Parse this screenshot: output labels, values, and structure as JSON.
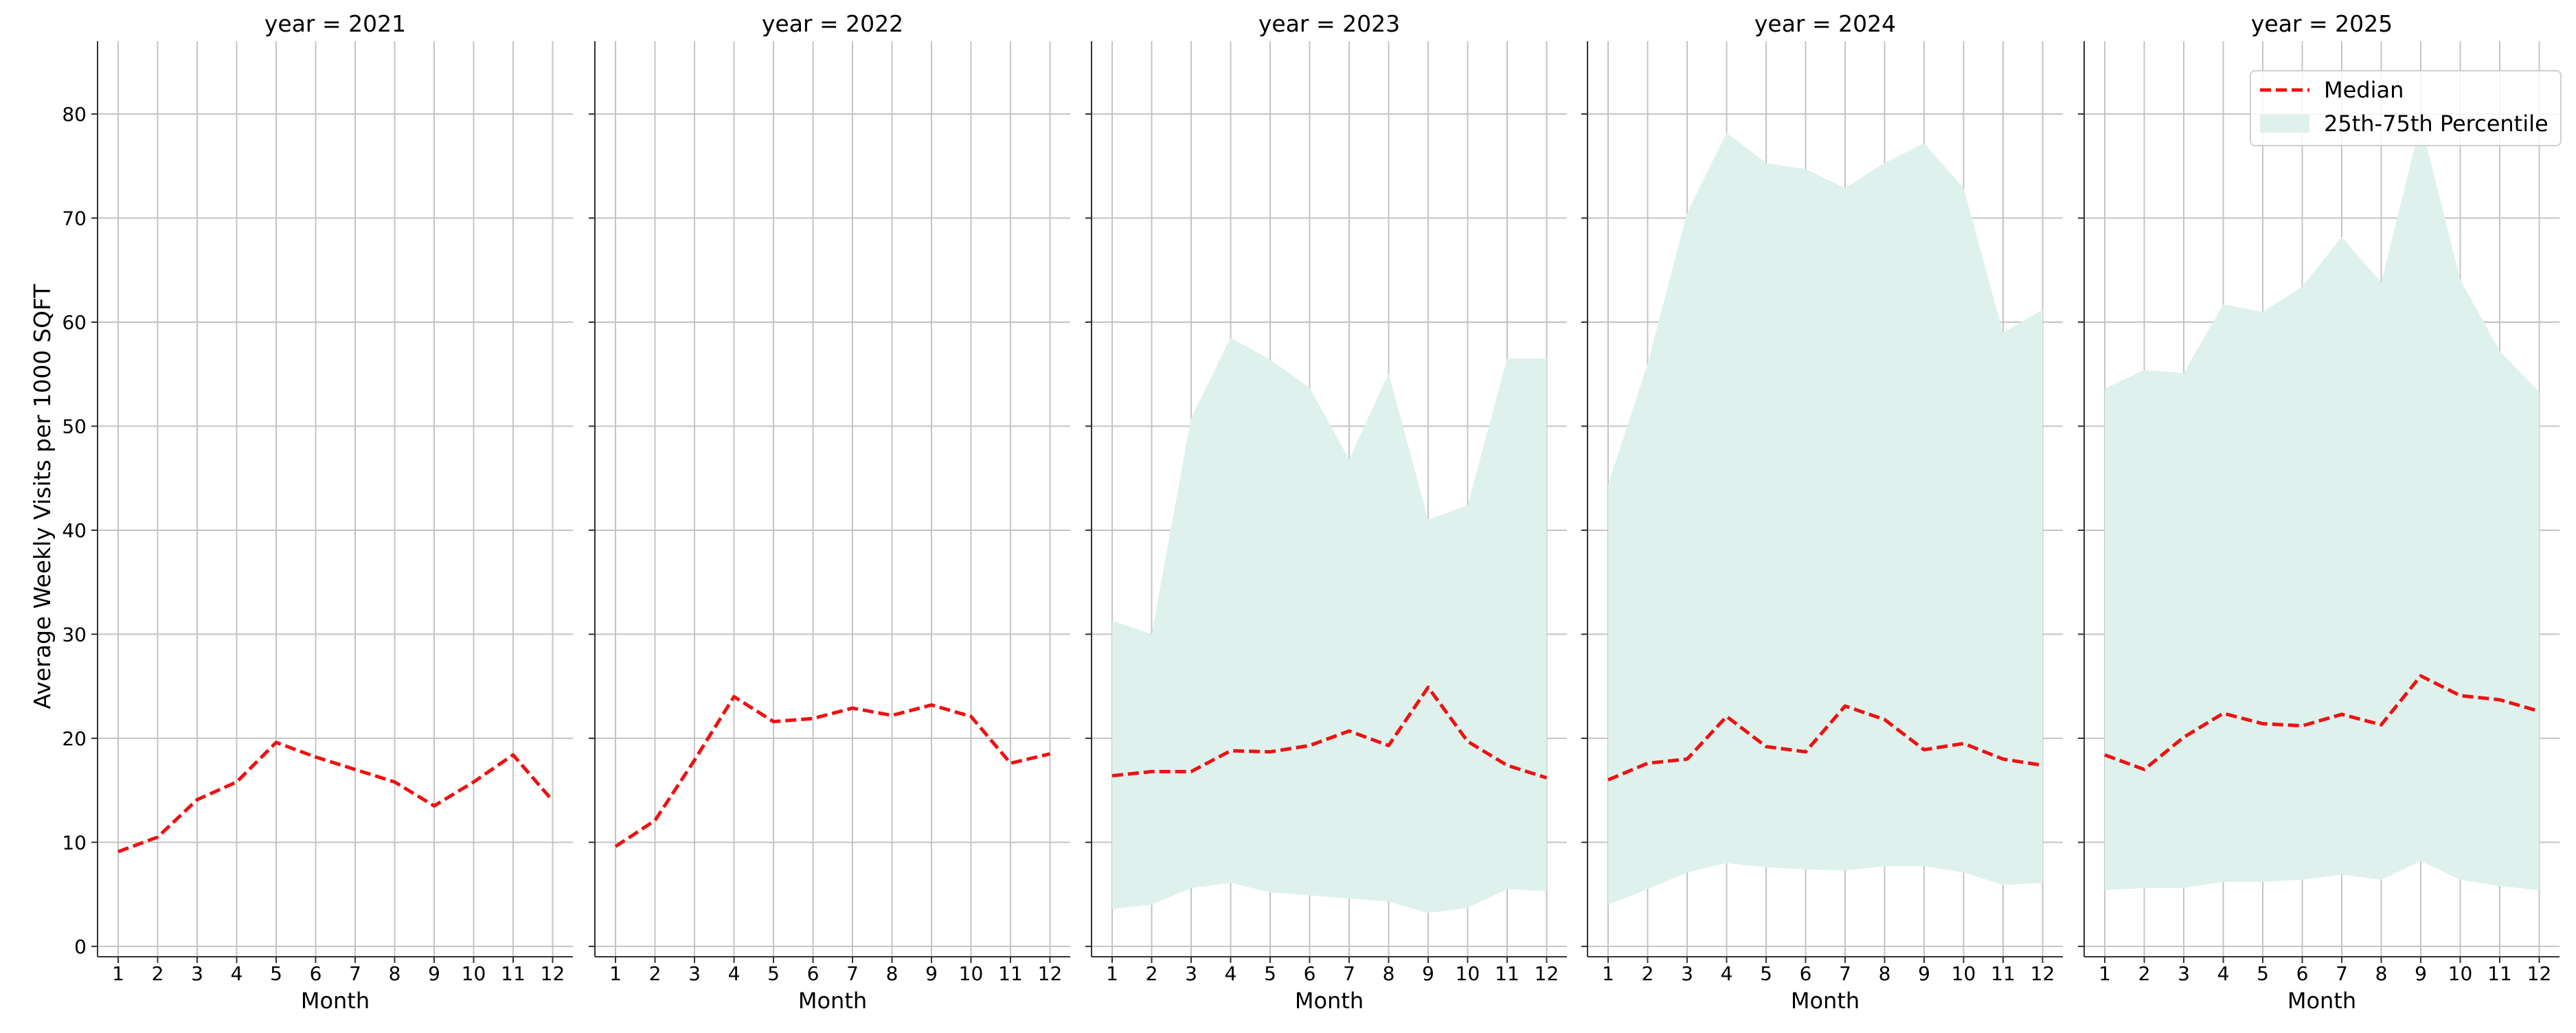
{
  "figure": {
    "ylabel": "Average Weekly Visits per 1000 SQFT",
    "xlabel": "Month"
  },
  "legend": {
    "placement": "top-right",
    "median_label": "Median",
    "band_label": "25th-75th Percentile"
  },
  "colors": {
    "median": "#ee1111",
    "band": "#dff1ec",
    "grid": "#c4c4c4",
    "axis": "#333333"
  },
  "chart_data": {
    "type": "line",
    "ylim": [
      -1,
      87
    ],
    "yticks": [
      0,
      10,
      20,
      30,
      40,
      50,
      60,
      70,
      80
    ],
    "xticks": [
      1,
      2,
      3,
      4,
      5,
      6,
      7,
      8,
      9,
      10,
      11,
      12
    ],
    "grid": true,
    "legend_placement": "top-right",
    "series_names": [
      "Median",
      "25th-75th Percentile"
    ],
    "panels": [
      {
        "title": "year = 2021",
        "x": [
          1,
          2,
          3,
          4,
          5,
          6,
          7,
          8,
          9,
          10,
          11,
          12
        ],
        "median": [
          9.1,
          10.5,
          14.1,
          15.8,
          19.6,
          18.2,
          17.0,
          15.8,
          13.5,
          15.8,
          18.4,
          14.0
        ],
        "p25": null,
        "p75": null
      },
      {
        "title": "year = 2022",
        "x": [
          1,
          2,
          3,
          4,
          5,
          6,
          7,
          8,
          9,
          10,
          11,
          12
        ],
        "median": [
          9.6,
          12.1,
          17.9,
          24.0,
          21.6,
          21.9,
          22.9,
          22.2,
          23.2,
          22.1,
          17.6,
          18.5
        ],
        "p25": null,
        "p75": null
      },
      {
        "title": "year = 2023",
        "x": [
          1,
          2,
          3,
          4,
          5,
          6,
          7,
          8,
          9,
          10,
          11,
          12
        ],
        "median": [
          16.4,
          16.8,
          16.8,
          18.8,
          18.7,
          19.3,
          20.7,
          19.3,
          24.9,
          19.7,
          17.4,
          16.2
        ],
        "p25": [
          3.6,
          4.0,
          5.6,
          6.1,
          5.2,
          4.9,
          4.6,
          4.3,
          3.2,
          3.7,
          5.5,
          5.3
        ],
        "p75": [
          31.3,
          30.0,
          50.8,
          58.5,
          56.4,
          53.7,
          46.8,
          55.1,
          41.0,
          42.4,
          56.5,
          56.5
        ]
      },
      {
        "title": "year = 2024",
        "x": [
          1,
          2,
          3,
          4,
          5,
          6,
          7,
          8,
          9,
          10,
          11,
          12
        ],
        "median": [
          16.0,
          17.6,
          18.0,
          22.1,
          19.2,
          18.7,
          23.1,
          21.8,
          18.9,
          19.5,
          18.0,
          17.4
        ],
        "p25": [
          4.0,
          5.5,
          7.1,
          8.0,
          7.6,
          7.4,
          7.3,
          7.7,
          7.7,
          7.1,
          5.9,
          6.1
        ],
        "p75": [
          44.4,
          56.0,
          70.5,
          78.2,
          75.3,
          74.7,
          72.9,
          75.3,
          77.2,
          72.9,
          59.0,
          61.2
        ]
      },
      {
        "title": "year = 2025",
        "x": [
          1,
          2,
          3,
          4,
          5,
          6,
          7,
          8,
          9,
          10,
          11,
          12
        ],
        "median": [
          18.4,
          17.0,
          20.1,
          22.4,
          21.4,
          21.2,
          22.3,
          21.3,
          26.0,
          24.1,
          23.7,
          22.6
        ],
        "p25": [
          5.4,
          5.6,
          5.6,
          6.2,
          6.2,
          6.4,
          6.9,
          6.4,
          8.2,
          6.4,
          5.8,
          5.4
        ],
        "p75": [
          53.6,
          55.4,
          55.1,
          61.7,
          61.0,
          63.4,
          68.2,
          63.8,
          79.2,
          64.1,
          57.2,
          53.3
        ]
      }
    ]
  }
}
